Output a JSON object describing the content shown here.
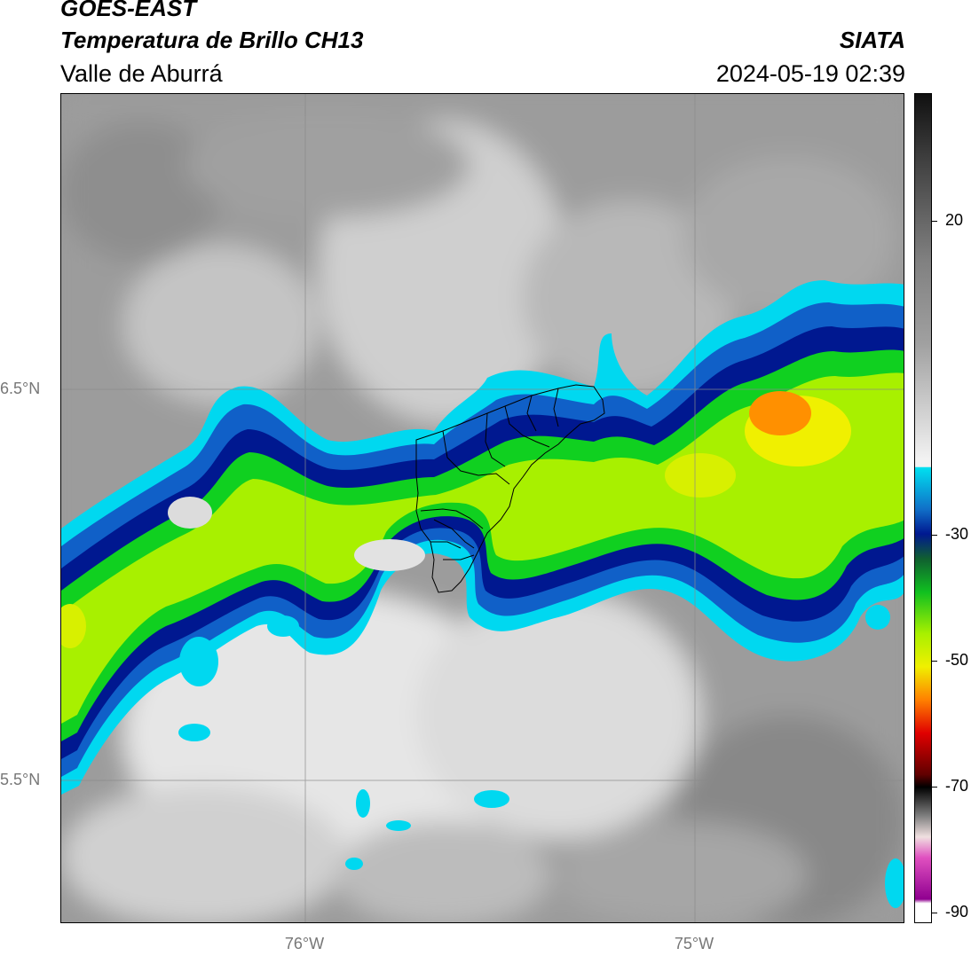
{
  "header": {
    "satellite": "GOES-EAST",
    "product": "Temperatura de Brillo CH13",
    "region": "Valle de Aburrá",
    "organization": "SIATA",
    "datetime": "2024-05-19 02:39"
  },
  "map": {
    "latitude_labels": [
      "6.5°N",
      "5.5°N"
    ],
    "longitude_labels": [
      "76°W",
      "75°W"
    ]
  },
  "colorbar": {
    "tick_labels": [
      "20",
      "-30",
      "-50",
      "-70",
      "-90"
    ],
    "colors": {
      "warm_gray": "#8c8c8c",
      "light_gray": "#dcdcdc",
      "cyan": "#00d8f0",
      "blue": "#1060c8",
      "dark_blue": "#001890",
      "green": "#10d020",
      "lime": "#a8f000",
      "yellow": "#f0f000",
      "orange": "#ff9000",
      "red": "#e00000",
      "black": "#000000",
      "magenta": "#e050c0",
      "purple": "#900090"
    }
  }
}
